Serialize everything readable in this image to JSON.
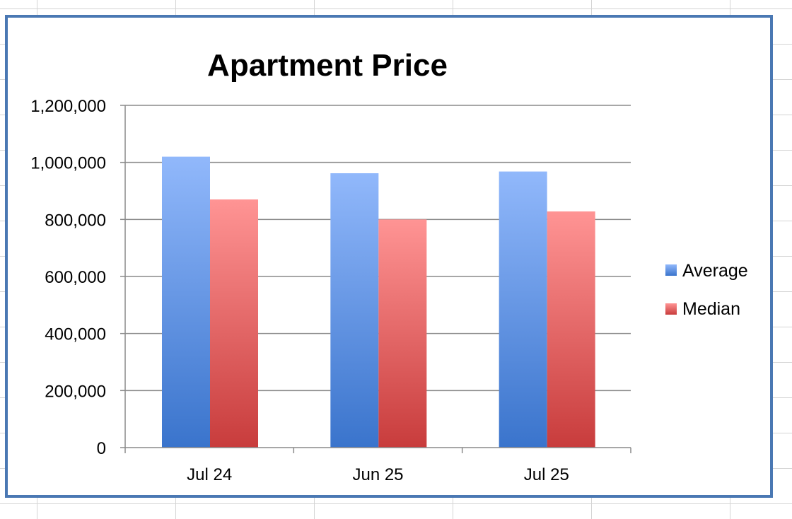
{
  "chart_data": {
    "type": "bar",
    "title": "Apartment Price",
    "categories": [
      "Jul 24",
      "Jun  25",
      "Jul  25"
    ],
    "series": [
      {
        "name": "Average",
        "values": [
          1020000,
          962000,
          968000
        ],
        "color": "#5b8ee6"
      },
      {
        "name": "Median",
        "values": [
          870000,
          800000,
          828000
        ],
        "color": "#e06060"
      }
    ],
    "yticks": [
      "0",
      "200,000",
      "400,000",
      "600,000",
      "800,000",
      "1,000,000",
      "1,200,000"
    ],
    "ylim": [
      0,
      1200000
    ],
    "grid": true,
    "legend": "right"
  },
  "colors": {
    "frame_border": "#4a78b3",
    "average_top": "#91b8fb",
    "average_bottom": "#3a74cc",
    "median_top": "#ff9494",
    "median_bottom": "#c83c3c"
  }
}
